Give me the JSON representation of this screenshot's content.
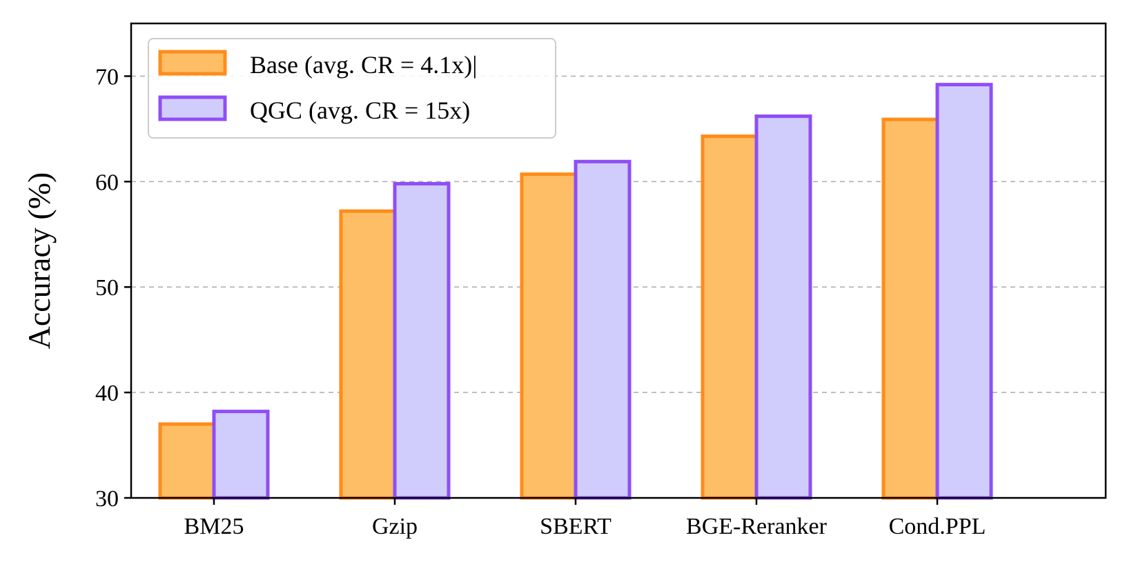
{
  "chart_data": {
    "type": "bar",
    "categories": [
      "BM25",
      "Gzip",
      "SBERT",
      "BGE-Reranker",
      "Cond.PPL"
    ],
    "series": [
      {
        "name": "Base (avg. CR = 4.1x)|",
        "values": [
          37.0,
          57.2,
          60.7,
          64.3,
          65.9
        ],
        "fill": "#fdbe66",
        "stroke": "#ff8c1a"
      },
      {
        "name": "QGC (avg. CR = 15x)",
        "values": [
          38.2,
          59.8,
          61.9,
          66.2,
          69.2
        ],
        "fill": "#d0cdfc",
        "stroke": "#8f4ef6"
      }
    ],
    "ylabel": "Accuracy (%)",
    "xlabel": "",
    "ylim": [
      30,
      75
    ],
    "yticks": [
      30,
      40,
      50,
      60,
      70
    ],
    "grid": "y-dashed",
    "legend": "top-left"
  }
}
